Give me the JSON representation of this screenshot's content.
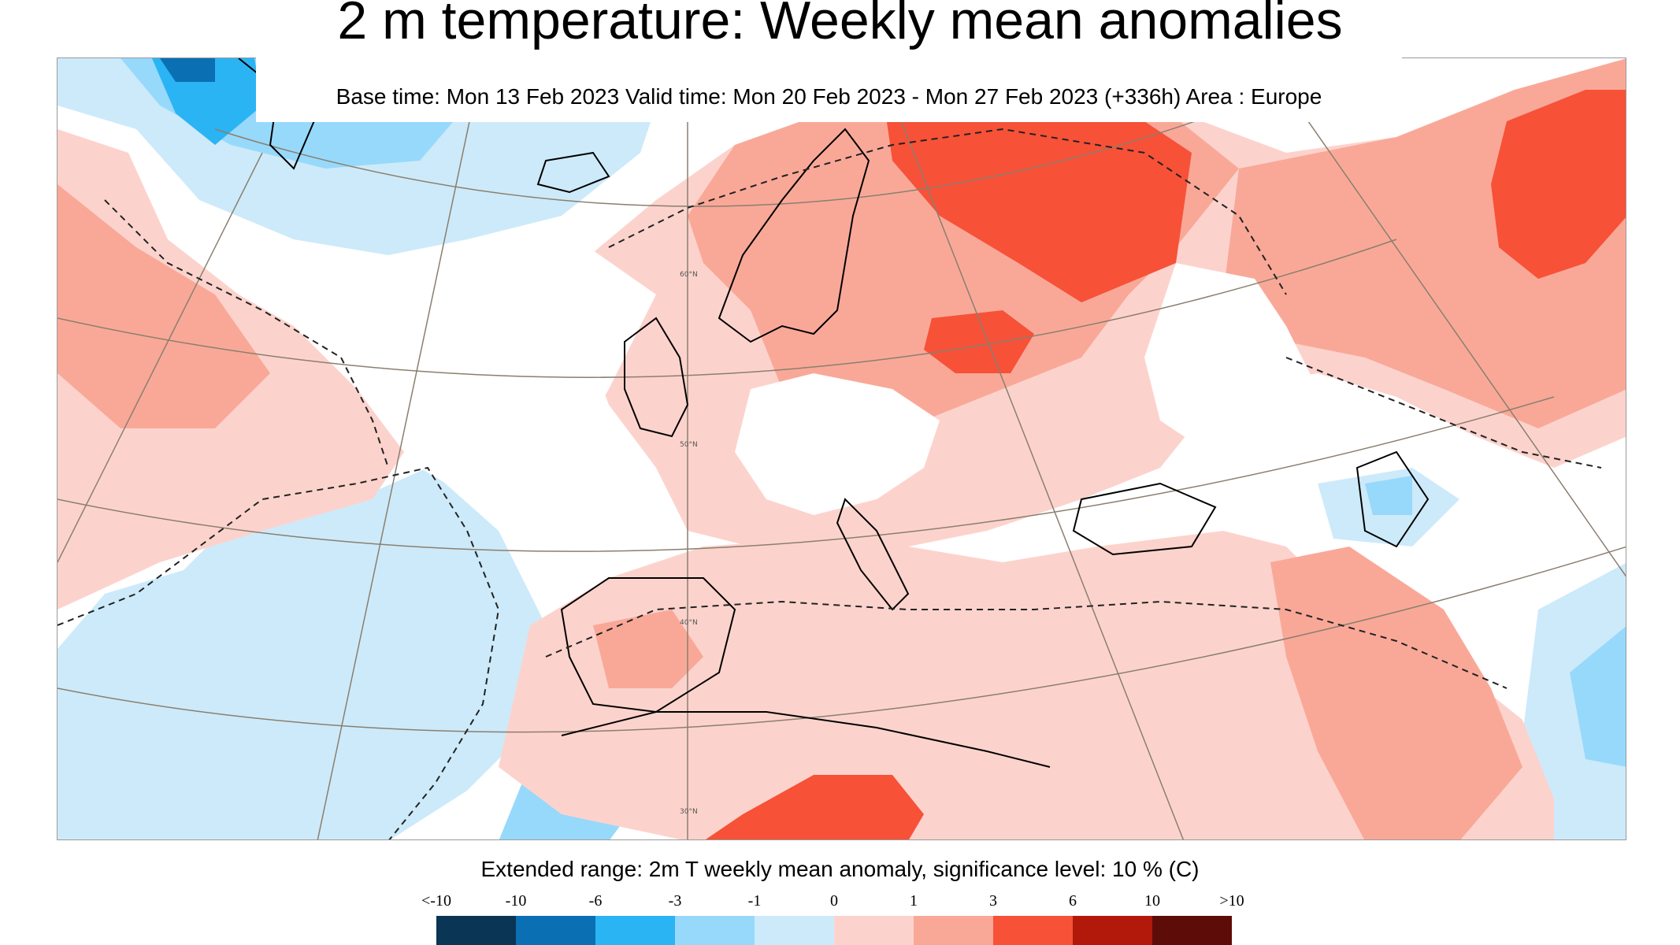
{
  "title": "2 m temperature: Weekly mean anomalies",
  "subtitle": "Base time: Mon 13 Feb 2023 Valid time: Mon 20 Feb 2023 - Mon 27 Feb 2023 (+336h) Area : Europe",
  "map": {
    "latitude_labels": [
      "60°N",
      "50°N",
      "40°N",
      "30°N"
    ],
    "colors": {
      "ocean_background": "#ffffff",
      "coastline": "#000000",
      "graticule": "#8a7f6e",
      "border": "#555555"
    }
  },
  "legend": {
    "title": "Extended range: 2m T weekly mean anomaly, significance level: 10 % (C)",
    "labels": [
      "<-10",
      "-10",
      "-6",
      "-3",
      "-1",
      "0",
      "1",
      "3",
      "6",
      "10",
      ">10"
    ],
    "colors": [
      "#0b3554",
      "#0a6fb3",
      "#2bb4f3",
      "#97d9fb",
      "#cdeafa",
      "#fcd3cc",
      "#f9a898",
      "#f75138",
      "#b2190b",
      "#5d0c08"
    ]
  }
}
